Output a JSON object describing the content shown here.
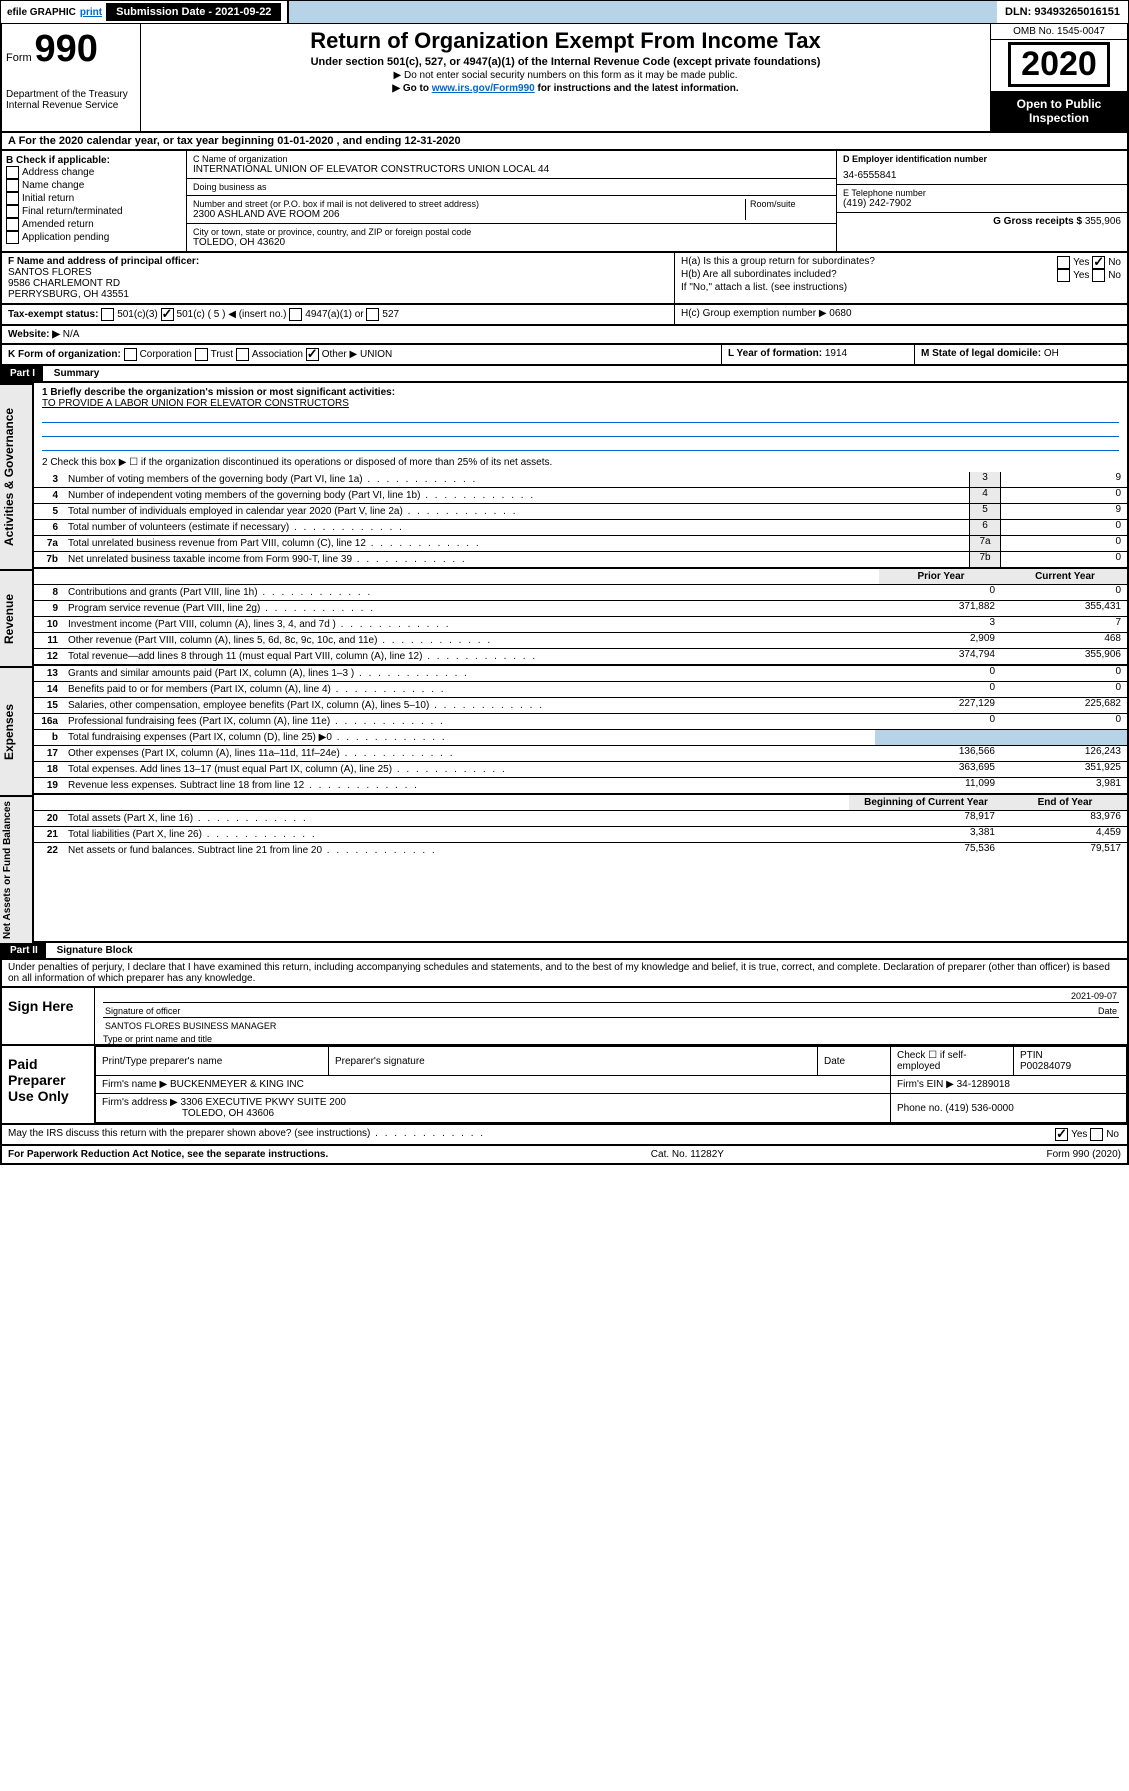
{
  "topbar": {
    "efile": "efile GRAPHIC",
    "print": "print",
    "submission_label": "Submission Date - ",
    "submission_date": "2021-09-22",
    "dln_label": "DLN: ",
    "dln": "93493265016151"
  },
  "header": {
    "form_label": "Form",
    "form_number": "990",
    "agency1": "Department of the Treasury",
    "agency2": "Internal Revenue Service",
    "title": "Return of Organization Exempt From Income Tax",
    "sub1": "Under section 501(c), 527, or 4947(a)(1) of the Internal Revenue Code (except private foundations)",
    "sub2a": "▶ Do not enter social security numbers on this form as it may be made public.",
    "sub2b_pre": "▶ Go to ",
    "sub2b_link": "www.irs.gov/Form990",
    "sub2b_post": " for instructions and the latest information.",
    "omb_label": "OMB No. ",
    "omb": "1545-0047",
    "year": "2020",
    "open_pub": "Open to Public Inspection"
  },
  "rowA": "A For the 2020 calendar year, or tax year beginning 01-01-2020   , and ending 12-31-2020",
  "colB": {
    "label": "B Check if applicable:",
    "items": [
      "Address change",
      "Name change",
      "Initial return",
      "Final return/terminated",
      "Amended return",
      "Application pending"
    ]
  },
  "colC": {
    "name_label": "C Name of organization",
    "name": "INTERNATIONAL UNION OF ELEVATOR CONSTRUCTORS UNION LOCAL 44",
    "dba_label": "Doing business as",
    "addr_label": "Number and street (or P.O. box if mail is not delivered to street address)",
    "room_label": "Room/suite",
    "addr": "2300 ASHLAND AVE ROOM 206",
    "city_label": "City or town, state or province, country, and ZIP or foreign postal code",
    "city": "TOLEDO, OH  43620"
  },
  "colD": {
    "ein_label": "D Employer identification number",
    "ein": "34-6555841",
    "phone_label": "E Telephone number",
    "phone": "(419) 242-7902",
    "gross_label": "G Gross receipts $ ",
    "gross": "355,906"
  },
  "rowF": {
    "label": "F  Name and address of principal officer:",
    "name": "SANTOS FLORES",
    "addr1": "9586 CHARLEMONT RD",
    "addr2": "PERRYSBURG, OH  43551"
  },
  "rowH": {
    "ha": "H(a)  Is this a group return for subordinates?",
    "hb": "H(b)  Are all subordinates included?",
    "hb_note": "If \"No,\" attach a list. (see instructions)",
    "hc": "H(c)  Group exemption number ▶   0680",
    "yes": "Yes",
    "no": "No"
  },
  "rowI": {
    "label": "Tax-exempt status:",
    "opt1": "501(c)(3)",
    "opt2a": "501(c) ( 5 ) ◀ (insert no.)",
    "opt3": "4947(a)(1) or",
    "opt4": "527"
  },
  "rowJ": {
    "label": "Website: ▶",
    "val": "N/A"
  },
  "rowK": {
    "label": "K Form of organization:",
    "opts": [
      "Corporation",
      "Trust",
      "Association"
    ],
    "other_label": "Other ▶",
    "other_val": "UNION",
    "l_label": "L Year of formation: ",
    "l_val": "1914",
    "m_label": "M State of legal domicile: ",
    "m_val": "OH"
  },
  "part1": {
    "header": "Part I",
    "title": "Summary",
    "q1_label": "1  Briefly describe the organization's mission or most significant activities:",
    "q1_val": "TO PROVIDE A LABOR UNION FOR ELEVATOR CONSTRUCTORS",
    "q2": "2   Check this box ▶ ☐  if the organization discontinued its operations or disposed of more than 25% of its net assets.",
    "side_gov": "Activities & Governance",
    "side_rev": "Revenue",
    "side_exp": "Expenses",
    "side_net": "Net Assets or Fund Balances",
    "hdr_prior": "Prior Year",
    "hdr_current": "Current Year",
    "hdr_begin": "Beginning of Current Year",
    "hdr_end": "End of Year",
    "lines_gov": [
      {
        "n": "3",
        "t": "Number of voting members of the governing body (Part VI, line 1a)",
        "v": "9"
      },
      {
        "n": "4",
        "t": "Number of independent voting members of the governing body (Part VI, line 1b)",
        "v": "0"
      },
      {
        "n": "5",
        "t": "Total number of individuals employed in calendar year 2020 (Part V, line 2a)",
        "v": "9"
      },
      {
        "n": "6",
        "t": "Total number of volunteers (estimate if necessary)",
        "v": "0"
      },
      {
        "n": "7a",
        "t": "Total unrelated business revenue from Part VIII, column (C), line 12",
        "v": "0"
      },
      {
        "n": "7b",
        "t": "Net unrelated business taxable income from Form 990-T, line 39",
        "v": "0"
      }
    ],
    "lines_rev": [
      {
        "n": "8",
        "t": "Contributions and grants (Part VIII, line 1h)",
        "p": "0",
        "c": "0"
      },
      {
        "n": "9",
        "t": "Program service revenue (Part VIII, line 2g)",
        "p": "371,882",
        "c": "355,431"
      },
      {
        "n": "10",
        "t": "Investment income (Part VIII, column (A), lines 3, 4, and 7d )",
        "p": "3",
        "c": "7"
      },
      {
        "n": "11",
        "t": "Other revenue (Part VIII, column (A), lines 5, 6d, 8c, 9c, 10c, and 11e)",
        "p": "2,909",
        "c": "468"
      },
      {
        "n": "12",
        "t": "Total revenue—add lines 8 through 11 (must equal Part VIII, column (A), line 12)",
        "p": "374,794",
        "c": "355,906"
      }
    ],
    "lines_exp": [
      {
        "n": "13",
        "t": "Grants and similar amounts paid (Part IX, column (A), lines 1–3 )",
        "p": "0",
        "c": "0"
      },
      {
        "n": "14",
        "t": "Benefits paid to or for members (Part IX, column (A), line 4)",
        "p": "0",
        "c": "0"
      },
      {
        "n": "15",
        "t": "Salaries, other compensation, employee benefits (Part IX, column (A), lines 5–10)",
        "p": "227,129",
        "c": "225,682"
      },
      {
        "n": "16a",
        "t": "Professional fundraising fees (Part IX, column (A), line 11e)",
        "p": "0",
        "c": "0"
      },
      {
        "n": "b",
        "t": "Total fundraising expenses (Part IX, column (D), line 25) ▶0",
        "p": "",
        "c": "",
        "shade": true
      },
      {
        "n": "17",
        "t": "Other expenses (Part IX, column (A), lines 11a–11d, 11f–24e)",
        "p": "136,566",
        "c": "126,243"
      },
      {
        "n": "18",
        "t": "Total expenses. Add lines 13–17 (must equal Part IX, column (A), line 25)",
        "p": "363,695",
        "c": "351,925"
      },
      {
        "n": "19",
        "t": "Revenue less expenses. Subtract line 18 from line 12",
        "p": "11,099",
        "c": "3,981"
      }
    ],
    "lines_net": [
      {
        "n": "20",
        "t": "Total assets (Part X, line 16)",
        "p": "78,917",
        "c": "83,976"
      },
      {
        "n": "21",
        "t": "Total liabilities (Part X, line 26)",
        "p": "3,381",
        "c": "4,459"
      },
      {
        "n": "22",
        "t": "Net assets or fund balances. Subtract line 21 from line 20",
        "p": "75,536",
        "c": "79,517"
      }
    ]
  },
  "part2": {
    "header": "Part II",
    "title": "Signature Block",
    "perjury": "Under penalties of perjury, I declare that I have examined this return, including accompanying schedules and statements, and to the best of my knowledge and belief, it is true, correct, and complete. Declaration of preparer (other than officer) is based on all information of which preparer has any knowledge.",
    "sign_here": "Sign Here",
    "sig_officer": "Signature of officer",
    "sig_date": "2021-09-07",
    "date_label": "Date",
    "name_title": "SANTOS FLORES  BUSINESS MANAGER",
    "name_title_label": "Type or print name and title",
    "paid": "Paid Preparer Use Only",
    "h_prep_name": "Print/Type preparer's name",
    "h_prep_sig": "Preparer's signature",
    "h_date": "Date",
    "h_check": "Check ☐ if self-employed",
    "h_ptin": "PTIN",
    "ptin": "P00284079",
    "firm_name_label": "Firm's name      ▶ ",
    "firm_name": "BUCKENMEYER & KING INC",
    "firm_ein_label": "Firm's EIN ▶ ",
    "firm_ein": "34-1289018",
    "firm_addr_label": "Firm's address ▶ ",
    "firm_addr1": "3306 EXECUTIVE PKWY SUITE 200",
    "firm_addr2": "TOLEDO, OH  43606",
    "firm_phone_label": "Phone no. ",
    "firm_phone": "(419) 536-0000",
    "discuss": "May the IRS discuss this return with the preparer shown above? (see instructions)",
    "yes": "Yes",
    "no": "No"
  },
  "footer": {
    "left": "For Paperwork Reduction Act Notice, see the separate instructions.",
    "mid": "Cat. No. 11282Y",
    "right": "Form 990 (2020)"
  }
}
